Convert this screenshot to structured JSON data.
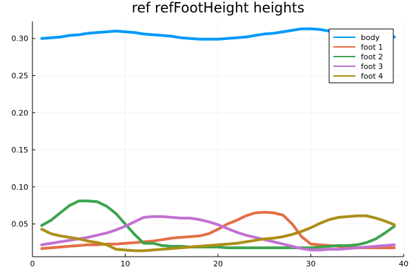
{
  "chart_data": {
    "type": "line",
    "title": "ref refFootHeight heights",
    "xlabel": "",
    "ylabel": "",
    "xlim": [
      0,
      40
    ],
    "ylim": [
      0.006,
      0.323
    ],
    "xticks": [
      0,
      10,
      20,
      30,
      40
    ],
    "yticks": [
      0.05,
      0.1,
      0.15,
      0.2,
      0.25,
      0.3
    ],
    "ytick_labels": [
      "0.05",
      "0.10",
      "0.15",
      "0.20",
      "0.25",
      "0.30"
    ],
    "grid": true,
    "legend": "top-right",
    "x": [
      1,
      2,
      3,
      4,
      5,
      6,
      7,
      8,
      9,
      10,
      11,
      12,
      13,
      14,
      15,
      16,
      17,
      18,
      19,
      20,
      21,
      22,
      23,
      24,
      25,
      26,
      27,
      28,
      29,
      30,
      31,
      32,
      33,
      34,
      35,
      36,
      37,
      38,
      39
    ],
    "series": [
      {
        "name": "body",
        "color": "#009AFA",
        "values": [
          0.3,
          0.301,
          0.302,
          0.304,
          0.305,
          0.307,
          0.308,
          0.309,
          0.31,
          0.309,
          0.308,
          0.306,
          0.305,
          0.304,
          0.303,
          0.301,
          0.3,
          0.299,
          0.299,
          0.299,
          0.3,
          0.301,
          0.302,
          0.304,
          0.306,
          0.307,
          0.309,
          0.311,
          0.313,
          0.313,
          0.312,
          0.31,
          0.308,
          0.306,
          0.305,
          0.304,
          0.303,
          0.302,
          0.302
        ]
      },
      {
        "name": "foot 1",
        "color": "#E36F47",
        "values": [
          0.017,
          0.018,
          0.019,
          0.02,
          0.021,
          0.022,
          0.022,
          0.023,
          0.023,
          0.024,
          0.025,
          0.026,
          0.027,
          0.029,
          0.031,
          0.032,
          0.033,
          0.034,
          0.037,
          0.043,
          0.05,
          0.055,
          0.061,
          0.065,
          0.066,
          0.065,
          0.062,
          0.05,
          0.033,
          0.023,
          0.022,
          0.021,
          0.02,
          0.019,
          0.018,
          0.018,
          0.018,
          0.018,
          0.018
        ]
      },
      {
        "name": "foot 2",
        "color": "#3EA44E",
        "values": [
          0.048,
          0.055,
          0.065,
          0.075,
          0.081,
          0.081,
          0.08,
          0.074,
          0.064,
          0.05,
          0.036,
          0.024,
          0.024,
          0.021,
          0.02,
          0.02,
          0.019,
          0.019,
          0.019,
          0.019,
          0.018,
          0.018,
          0.018,
          0.018,
          0.018,
          0.018,
          0.018,
          0.018,
          0.018,
          0.018,
          0.019,
          0.02,
          0.021,
          0.021,
          0.022,
          0.025,
          0.03,
          0.038,
          0.047
        ]
      },
      {
        "name": "foot 3",
        "color": "#C271D2",
        "values": [
          0.022,
          0.024,
          0.026,
          0.028,
          0.03,
          0.032,
          0.035,
          0.038,
          0.042,
          0.047,
          0.053,
          0.059,
          0.06,
          0.06,
          0.059,
          0.058,
          0.058,
          0.056,
          0.053,
          0.049,
          0.044,
          0.039,
          0.035,
          0.032,
          0.029,
          0.026,
          0.023,
          0.02,
          0.017,
          0.015,
          0.015,
          0.016,
          0.016,
          0.017,
          0.018,
          0.019,
          0.02,
          0.021,
          0.022
        ]
      },
      {
        "name": "foot 4",
        "color": "#AC8E18",
        "values": [
          0.043,
          0.037,
          0.034,
          0.032,
          0.03,
          0.027,
          0.025,
          0.022,
          0.016,
          0.015,
          0.014,
          0.014,
          0.015,
          0.016,
          0.017,
          0.018,
          0.019,
          0.02,
          0.021,
          0.022,
          0.023,
          0.024,
          0.026,
          0.028,
          0.03,
          0.031,
          0.033,
          0.036,
          0.04,
          0.045,
          0.051,
          0.056,
          0.059,
          0.06,
          0.061,
          0.061,
          0.058,
          0.054,
          0.049
        ]
      }
    ]
  }
}
